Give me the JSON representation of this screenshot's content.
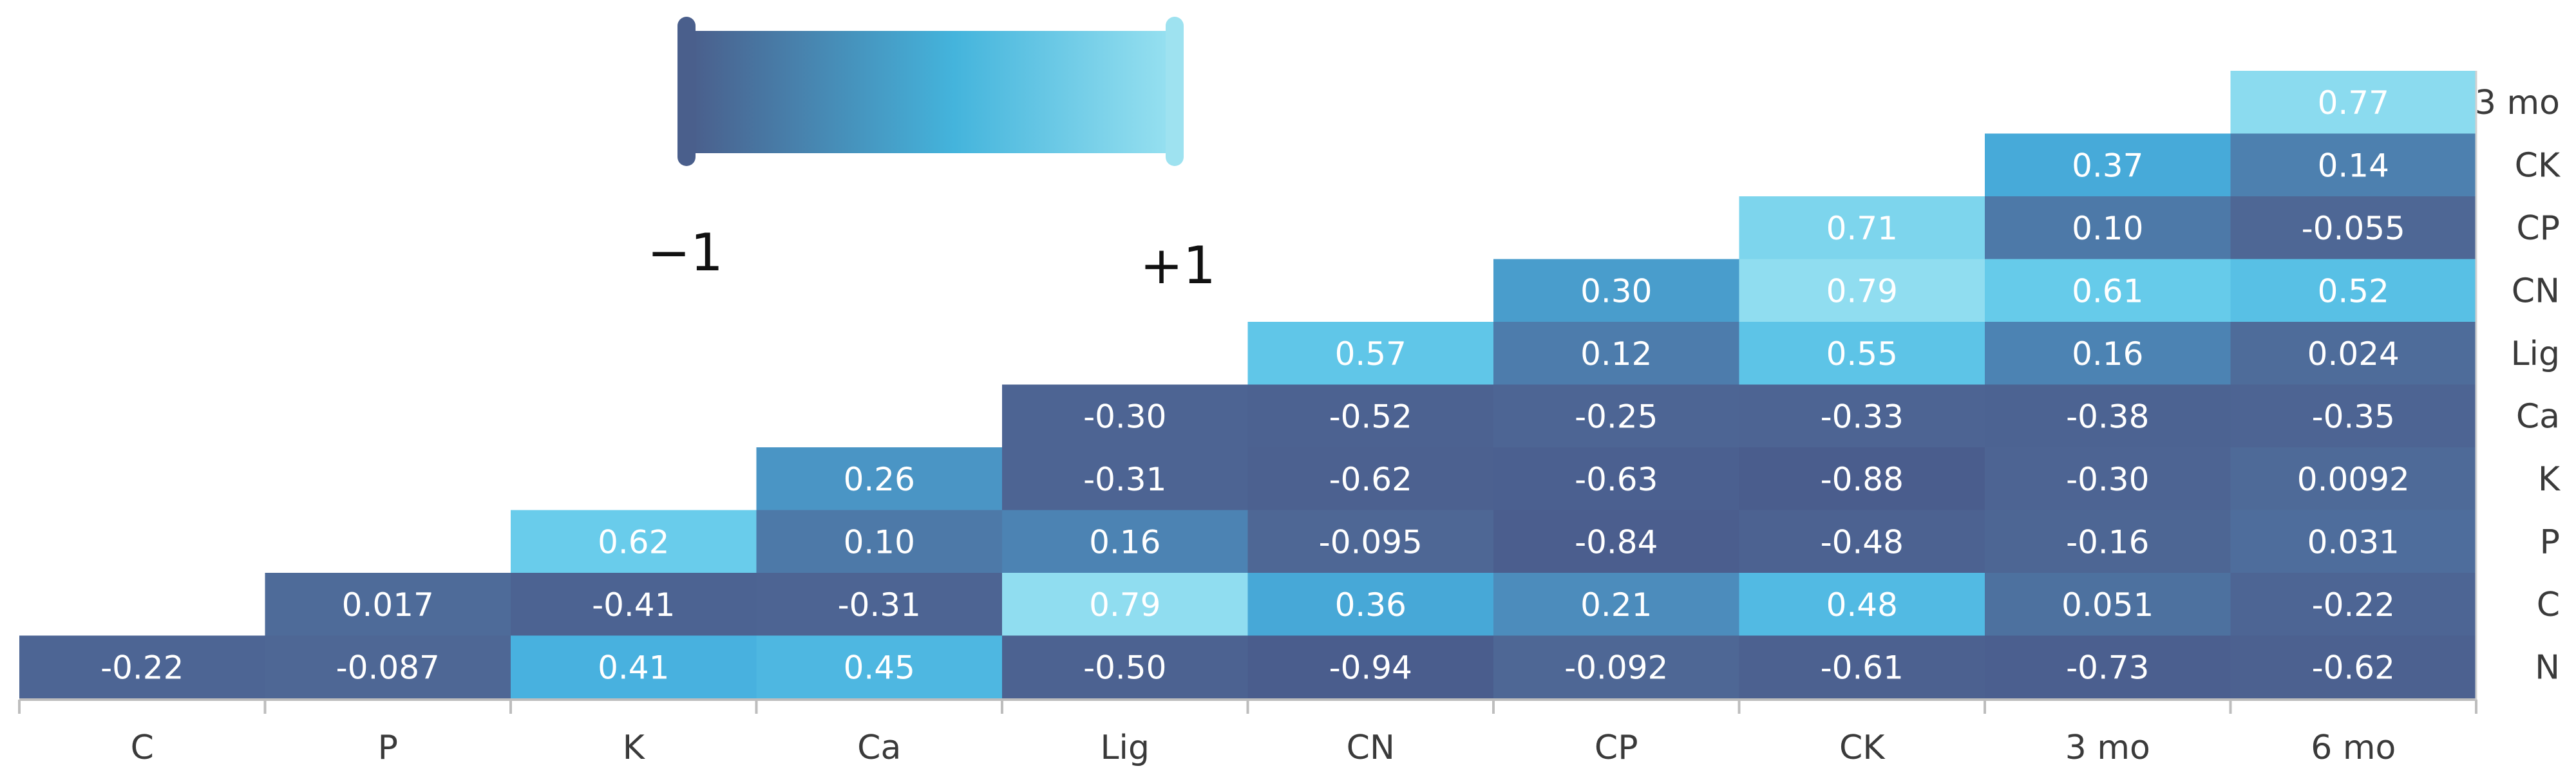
{
  "chart_data": {
    "type": "heatmap",
    "layout": "lower-triangular correlation matrix",
    "title": "",
    "x_categories": [
      "C",
      "P",
      "K",
      "Ca",
      "Lig",
      "CN",
      "CP",
      "CK",
      "3 mo",
      "6 mo"
    ],
    "y_categories": [
      "3 mo",
      "CK",
      "CP",
      "CN",
      "Lig",
      "Ca",
      "K",
      "P",
      "C",
      "N"
    ],
    "value_range": [
      -1,
      1
    ],
    "colorbar": {
      "min_label": "−1",
      "max_label": "+1",
      "min_color": "#4a5f8c",
      "max_color": "#8fdcef"
    },
    "rows": [
      {
        "label": "3 mo",
        "values": [
          null,
          null,
          null,
          null,
          null,
          null,
          null,
          null,
          null,
          "0.77"
        ]
      },
      {
        "label": "CK",
        "values": [
          null,
          null,
          null,
          null,
          null,
          null,
          null,
          null,
          "0.37",
          "0.14"
        ]
      },
      {
        "label": "CP",
        "values": [
          null,
          null,
          null,
          null,
          null,
          null,
          null,
          "0.71",
          "0.10",
          "-0.055"
        ]
      },
      {
        "label": "CN",
        "values": [
          null,
          null,
          null,
          null,
          null,
          null,
          "0.30",
          "0.79",
          "0.61",
          "0.52"
        ]
      },
      {
        "label": "Lig",
        "values": [
          null,
          null,
          null,
          null,
          null,
          "0.57",
          "0.12",
          "0.55",
          "0.16",
          "0.024"
        ]
      },
      {
        "label": "Ca",
        "values": [
          null,
          null,
          null,
          null,
          "-0.30",
          "-0.52",
          "-0.25",
          "-0.33",
          "-0.38",
          "-0.35"
        ]
      },
      {
        "label": "K",
        "values": [
          null,
          null,
          null,
          "0.26",
          "-0.31",
          "-0.62",
          "-0.63",
          "-0.88",
          "-0.30",
          "0.0092"
        ]
      },
      {
        "label": "P",
        "values": [
          null,
          null,
          "0.62",
          "0.10",
          "0.16",
          "-0.095",
          "-0.84",
          "-0.48",
          "-0.16",
          "0.031"
        ]
      },
      {
        "label": "C",
        "values": [
          null,
          "0.017",
          "-0.41",
          "-0.31",
          "0.79",
          "0.36",
          "0.21",
          "0.48",
          "0.051",
          "-0.22"
        ]
      },
      {
        "label": "N",
        "values": [
          "-0.22",
          "-0.087",
          "0.41",
          "0.45",
          "-0.50",
          "-0.94",
          "-0.092",
          "-0.61",
          "-0.73",
          "-0.62"
        ]
      }
    ]
  }
}
